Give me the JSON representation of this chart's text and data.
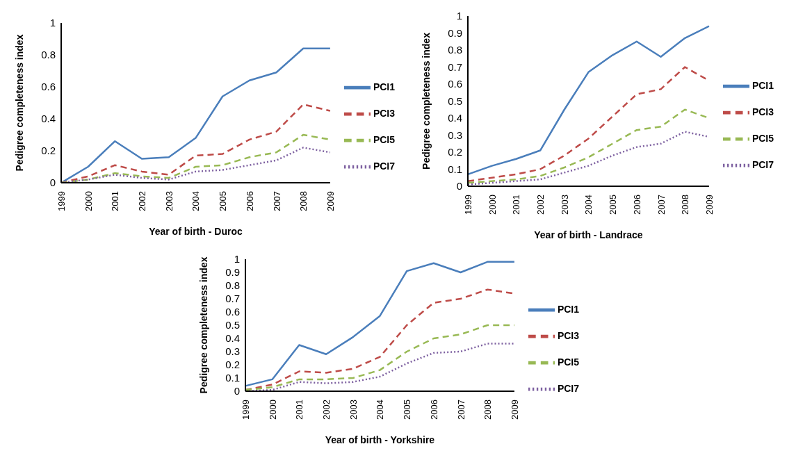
{
  "chart_data": [
    {
      "type": "line",
      "xlabel": "Year of birth - Duroc",
      "ylabel": "Pedigree completeness index",
      "categories": [
        "1999",
        "2000",
        "2001",
        "2002",
        "2003",
        "2004",
        "2005",
        "2006",
        "2007",
        "2008",
        "2009"
      ],
      "series": [
        {
          "name": "PCI1",
          "color": "#4a7ebb",
          "line_style": "solid",
          "values": [
            0,
            0.1,
            0.26,
            0.15,
            0.16,
            0.28,
            0.54,
            0.64,
            0.69,
            0.84,
            0.84
          ]
        },
        {
          "name": "PCI3",
          "color": "#be4b48",
          "line_style": "dashed",
          "values": [
            0,
            0.04,
            0.11,
            0.07,
            0.05,
            0.17,
            0.18,
            0.27,
            0.32,
            0.49,
            0.45
          ]
        },
        {
          "name": "PCI5",
          "color": "#98b954",
          "line_style": "dashed",
          "values": [
            0,
            0.02,
            0.06,
            0.04,
            0.03,
            0.1,
            0.11,
            0.16,
            0.19,
            0.3,
            0.27
          ]
        },
        {
          "name": "PCI7",
          "color": "#7d60a0",
          "line_style": "dotted",
          "values": [
            0,
            0.02,
            0.05,
            0.03,
            0.02,
            0.07,
            0.08,
            0.11,
            0.14,
            0.22,
            0.19
          ]
        }
      ],
      "ylim": [
        0,
        1
      ],
      "yticks": [
        0,
        0.2,
        0.4,
        0.6,
        0.8,
        1
      ],
      "grid": false,
      "legend": "right",
      "marker": "none"
    },
    {
      "type": "line",
      "xlabel": "Year of birth - Landrace",
      "ylabel": "Pedigree completeness index",
      "categories": [
        "1999",
        "2000",
        "2001",
        "2002",
        "2003",
        "2004",
        "2005",
        "2006",
        "2007",
        "2008",
        "2009"
      ],
      "series": [
        {
          "name": "PCI1",
          "color": "#4a7ebb",
          "line_style": "solid",
          "values": [
            0.07,
            0.12,
            0.16,
            0.21,
            0.45,
            0.67,
            0.77,
            0.85,
            0.76,
            0.87,
            0.94
          ]
        },
        {
          "name": "PCI3",
          "color": "#be4b48",
          "line_style": "dashed",
          "values": [
            0.03,
            0.05,
            0.07,
            0.1,
            0.18,
            0.28,
            0.41,
            0.54,
            0.57,
            0.7,
            0.62
          ]
        },
        {
          "name": "PCI5",
          "color": "#98b954",
          "line_style": "dashed",
          "values": [
            0.02,
            0.03,
            0.04,
            0.06,
            0.11,
            0.17,
            0.25,
            0.33,
            0.35,
            0.45,
            0.4
          ]
        },
        {
          "name": "PCI7",
          "color": "#7d60a0",
          "line_style": "dotted",
          "values": [
            0.01,
            0.02,
            0.03,
            0.04,
            0.08,
            0.12,
            0.18,
            0.23,
            0.25,
            0.32,
            0.29
          ]
        }
      ],
      "ylim": [
        0,
        1
      ],
      "yticks": [
        0,
        0.1,
        0.2,
        0.3,
        0.4,
        0.5,
        0.6,
        0.7,
        0.8,
        0.9,
        1
      ],
      "grid": false,
      "legend": "right",
      "marker": "none"
    },
    {
      "type": "line",
      "xlabel": "Year of birth - Yorkshire",
      "ylabel": "Pedigree completeness index",
      "categories": [
        "1999",
        "2000",
        "2001",
        "2002",
        "2003",
        "2004",
        "2005",
        "2006",
        "2007",
        "2008",
        "2009"
      ],
      "series": [
        {
          "name": "PCI1",
          "color": "#4a7ebb",
          "line_style": "solid",
          "values": [
            0.04,
            0.09,
            0.35,
            0.28,
            0.41,
            0.57,
            0.91,
            0.97,
            0.9,
            0.98,
            0.98
          ]
        },
        {
          "name": "PCI3",
          "color": "#be4b48",
          "line_style": "dashed",
          "values": [
            0.01,
            0.05,
            0.15,
            0.14,
            0.17,
            0.26,
            0.5,
            0.67,
            0.7,
            0.77,
            0.74
          ]
        },
        {
          "name": "PCI5",
          "color": "#98b954",
          "line_style": "dashed",
          "values": [
            0.01,
            0.03,
            0.09,
            0.09,
            0.1,
            0.16,
            0.3,
            0.4,
            0.43,
            0.5,
            0.5
          ]
        },
        {
          "name": "PCI7",
          "color": "#7d60a0",
          "line_style": "dotted",
          "values": [
            0,
            0.01,
            0.07,
            0.06,
            0.07,
            0.11,
            0.21,
            0.29,
            0.3,
            0.36,
            0.36
          ]
        }
      ],
      "ylim": [
        0,
        1
      ],
      "yticks": [
        0,
        0.1,
        0.2,
        0.3,
        0.4,
        0.5,
        0.6,
        0.7,
        0.8,
        0.9,
        1
      ],
      "grid": false,
      "legend": "right",
      "marker": "none"
    }
  ]
}
